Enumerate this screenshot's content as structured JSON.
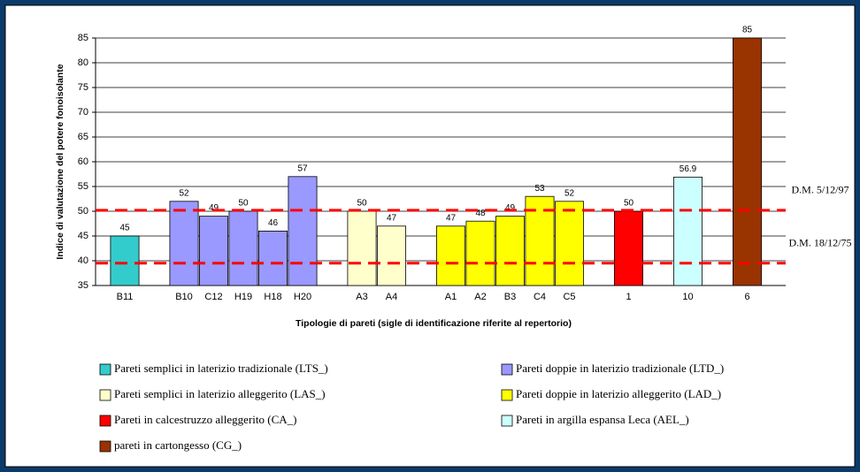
{
  "chart_data": {
    "type": "bar",
    "y_label": "Indice di valutazione del potere fonoisolante",
    "x_label": "Tipologie di pareti (sigle di identificazione riferite al repertorio)",
    "categories": [
      "B11",
      null,
      "B10",
      "C12",
      "H19",
      "H18",
      "H20",
      null,
      "A3",
      "A4",
      null,
      "A1",
      "A2",
      "B3",
      "C4",
      "C5",
      null,
      "1",
      null,
      "10",
      null,
      "6"
    ],
    "series": [
      {
        "name": "Pareti semplici in laterizio tradizionale (LTS_)",
        "color": "#33cccc",
        "values": [
          45,
          null,
          null,
          null,
          null,
          null,
          null,
          null,
          null,
          null,
          null,
          null,
          null,
          null,
          null,
          null,
          null,
          null,
          null,
          null,
          null,
          null
        ]
      },
      {
        "name": "Pareti doppie in laterizio tradizionale (LTD_)",
        "color": "#9999ff",
        "values": [
          null,
          null,
          52,
          49,
          50,
          46,
          57,
          null,
          null,
          null,
          null,
          null,
          null,
          null,
          null,
          null,
          null,
          null,
          null,
          null,
          null,
          null
        ]
      },
      {
        "name": "Pareti semplici in laterizio alleggerito (LAS_)",
        "color": "#ffffcc",
        "values": [
          null,
          null,
          null,
          null,
          null,
          null,
          null,
          null,
          50,
          47,
          null,
          null,
          null,
          null,
          null,
          null,
          null,
          null,
          null,
          null,
          null,
          null
        ]
      },
      {
        "name": "Pareti doppie in laterizio alleggerito (LAD_)",
        "color": "#ffff00",
        "values": [
          null,
          null,
          null,
          null,
          null,
          null,
          null,
          null,
          null,
          null,
          null,
          47,
          48,
          49,
          53,
          52,
          null,
          null,
          null,
          null,
          null,
          null
        ]
      },
      {
        "name": "Pareti in calcestruzzo alleggerito (CA_)",
        "color": "#ff0000",
        "values": [
          null,
          null,
          null,
          null,
          null,
          null,
          null,
          null,
          null,
          null,
          null,
          null,
          null,
          null,
          null,
          null,
          null,
          50,
          null,
          null,
          null,
          null
        ]
      },
      {
        "name": "Pareti in argilla espansa Leca (AEL_)",
        "color": "#ccffff",
        "values": [
          null,
          null,
          null,
          null,
          null,
          null,
          null,
          null,
          null,
          null,
          null,
          null,
          null,
          null,
          null,
          null,
          null,
          null,
          null,
          56.9,
          null,
          null
        ]
      },
      {
        "name": "pareti in cartongesso (CG_)",
        "color": "#993300",
        "values": [
          null,
          null,
          null,
          null,
          null,
          null,
          null,
          null,
          null,
          null,
          null,
          null,
          null,
          null,
          null,
          null,
          null,
          null,
          null,
          null,
          null,
          85
        ]
      }
    ],
    "ylim": [
      35,
      85
    ],
    "yticks": [
      35,
      40,
      45,
      50,
      55,
      60,
      65,
      70,
      75,
      80,
      85
    ],
    "grid": true,
    "annotations": [
      {
        "label": "D.M. 5/12/97",
        "value": 50.2,
        "color": "#ff0000"
      },
      {
        "label": "D.M. 18/12/75",
        "value": 39.5,
        "color": "#ff0000"
      }
    ]
  }
}
